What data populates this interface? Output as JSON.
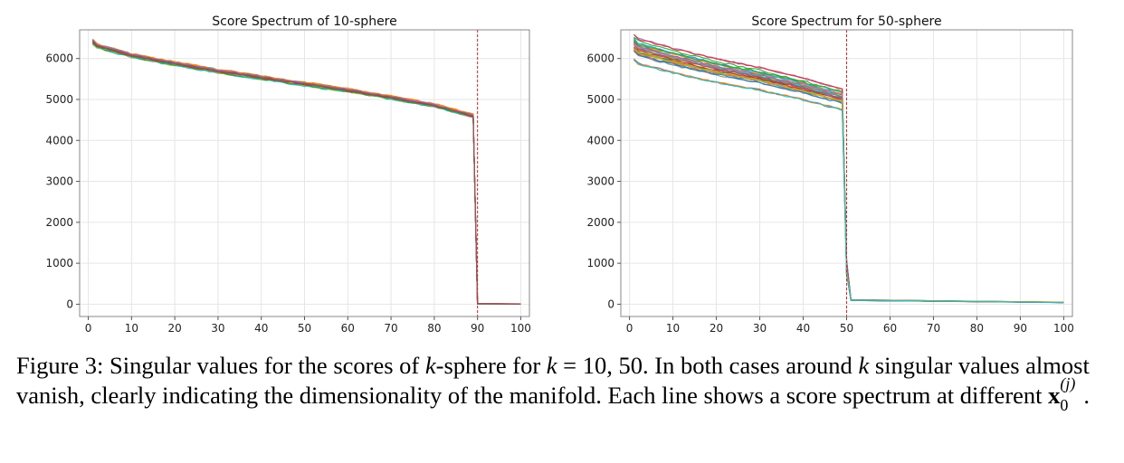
{
  "chart_data": [
    {
      "type": "line",
      "title": "Score Spectrum of 10-sphere",
      "xlabel": "",
      "ylabel": "",
      "xlim": [
        -2,
        102
      ],
      "ylim": [
        -300,
        6700
      ],
      "xticks": [
        0,
        10,
        20,
        30,
        40,
        50,
        60,
        70,
        80,
        90,
        100
      ],
      "yticks": [
        0,
        1000,
        2000,
        3000,
        4000,
        5000,
        6000
      ],
      "grid": true,
      "legend": "none",
      "vline": {
        "x": 90,
        "color": "#d62728",
        "style": "dashed"
      },
      "drop_index": 90,
      "curve_points": [
        [
          1,
          6340
        ],
        [
          10,
          6080
        ],
        [
          20,
          5880
        ],
        [
          30,
          5700
        ],
        [
          40,
          5540
        ],
        [
          50,
          5380
        ],
        [
          60,
          5230
        ],
        [
          70,
          5050
        ],
        [
          80,
          4860
        ],
        [
          89,
          4600
        ]
      ],
      "tail_value": 0,
      "x_end": 100,
      "n_series": 16,
      "spread": 60
    },
    {
      "type": "line",
      "title": "Score Spectrum for 50-sphere",
      "xlabel": "",
      "ylabel": "",
      "xlim": [
        -2,
        102
      ],
      "ylim": [
        -300,
        6700
      ],
      "xticks": [
        0,
        10,
        20,
        30,
        40,
        50,
        60,
        70,
        80,
        90,
        100
      ],
      "yticks": [
        0,
        1000,
        2000,
        3000,
        4000,
        5000,
        6000
      ],
      "grid": true,
      "legend": "none",
      "vline": {
        "x": 50,
        "color": "#d62728",
        "style": "dashed"
      },
      "drop_index": 50,
      "curve_points": [
        [
          1,
          6200
        ],
        [
          10,
          5950
        ],
        [
          20,
          5700
        ],
        [
          30,
          5500
        ],
        [
          40,
          5250
        ],
        [
          49,
          5000
        ]
      ],
      "tail_value": 60,
      "tail_end_value": 40,
      "x_end": 100,
      "n_series": 30,
      "spread": 340
    }
  ],
  "series_colors": [
    "#1f77b4",
    "#ff7f0e",
    "#2ca02c",
    "#d62728",
    "#9467bd",
    "#8c564b",
    "#e377c2",
    "#7f7f7f",
    "#bcbd22",
    "#17becf"
  ],
  "caption": {
    "line1": "Figure 3: Singular values for the scores of ",
    "k1": "k",
    "line1b": "-sphere for ",
    "k2": "k",
    "eq": " = 10, 50. In both cases around ",
    "k3": "k",
    "line1c": " singular values almost vanish, clearly indicating the dimensionality of the manifold. Each line shows a score spectrum at different ",
    "x": "x",
    "sup": "(j)",
    "sub": "0",
    "end": "."
  }
}
